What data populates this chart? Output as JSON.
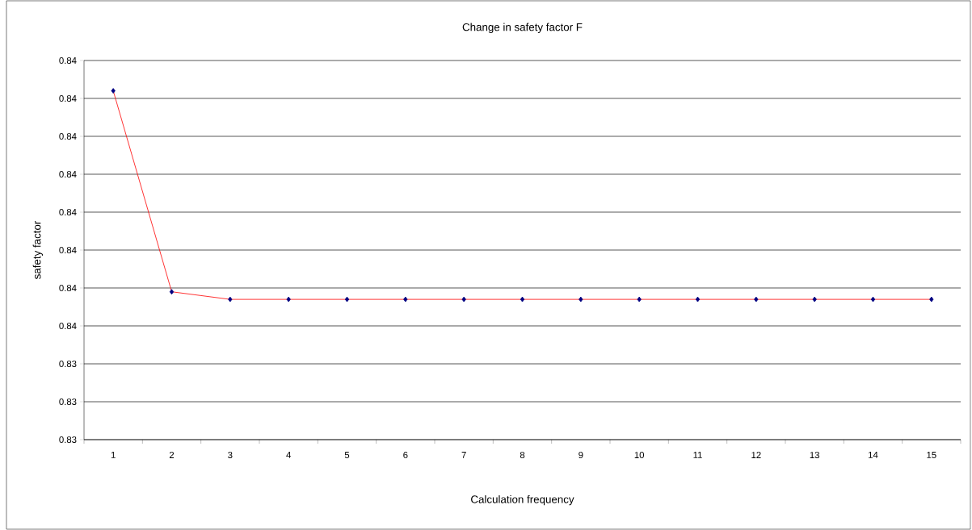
{
  "chart_data": {
    "type": "line",
    "title": "Change in safety factor F",
    "xlabel": "Calculation frequency",
    "ylabel": "safety factor",
    "categories": [
      "1",
      "2",
      "3",
      "4",
      "5",
      "6",
      "7",
      "8",
      "9",
      "10",
      "11",
      "12",
      "13",
      "14",
      "15"
    ],
    "series": [
      {
        "color": "#ff0000",
        "values": [
          0.8412,
          0.8359,
          0.8357,
          0.8357,
          0.8357,
          0.8357,
          0.8357,
          0.8357,
          0.8357,
          0.8357,
          0.8357,
          0.8357,
          0.8357,
          0.8357,
          0.8357
        ]
      }
    ],
    "ylim": [
      0.832,
      0.842
    ],
    "yticks": [
      {
        "value": 0.832,
        "label": "0.83"
      },
      {
        "value": 0.833,
        "label": "0.83"
      },
      {
        "value": 0.834,
        "label": "0.83"
      },
      {
        "value": 0.835,
        "label": "0.84"
      },
      {
        "value": 0.836,
        "label": "0.84"
      },
      {
        "value": 0.837,
        "label": "0.84"
      },
      {
        "value": 0.838,
        "label": "0.84"
      },
      {
        "value": 0.839,
        "label": "0.84"
      },
      {
        "value": 0.84,
        "label": "0.84"
      },
      {
        "value": 0.841,
        "label": "0.84"
      },
      {
        "value": 0.842,
        "label": "0.84"
      }
    ],
    "grid": "y",
    "marker": "diamond",
    "line_style": "solid"
  }
}
